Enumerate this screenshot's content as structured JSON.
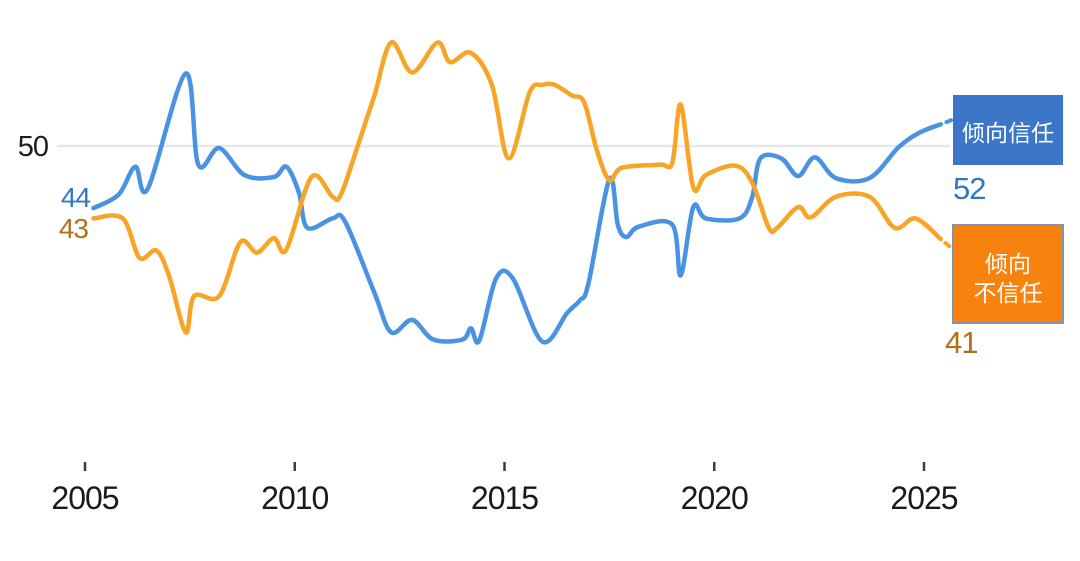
{
  "labels": {
    "y_gridline": "50",
    "trust_start": "44",
    "distrust_start": "43",
    "trust_end": "52",
    "distrust_end": "41"
  },
  "legend": {
    "trust": {
      "label": "倾向信任",
      "bg": "#3b76c9",
      "text_color": "#ffffff"
    },
    "distrust": {
      "line1": "倾向",
      "line2": "不信任",
      "bg": "#f8820e",
      "text_color": "#ffffff"
    }
  },
  "colors": {
    "trust_line": "#4a93e2",
    "distrust_line": "#f7a427",
    "trust_value_text": "#2e77c5",
    "distrust_value_text": "#b0701c",
    "gridline": "#e7e7e7",
    "tick": "#3c3c3c"
  },
  "chart_data": {
    "type": "line",
    "title": "",
    "x_axis": {
      "ticks": [
        2005,
        2010,
        2015,
        2020,
        2025
      ],
      "tick_labels": [
        "2005",
        "2010",
        "2015",
        "2020",
        "2025"
      ],
      "range": [
        2004.3,
        2026.2
      ]
    },
    "y_axis": {
      "gridline_value": 50,
      "gridline_label": "50",
      "approx_range": [
        28,
        63
      ],
      "grid": "single horizontal line at 50"
    },
    "legend_position": "right",
    "series": [
      {
        "name": "倾向信任",
        "color": "#4a93e2",
        "start_value": 44,
        "end_value": 52,
        "points": [
          [
            2005.2,
            44
          ],
          [
            2005.8,
            45.3
          ],
          [
            2006.2,
            48
          ],
          [
            2006.5,
            45.9
          ],
          [
            2007.4,
            57
          ],
          [
            2007.7,
            48.2
          ],
          [
            2008.2,
            49.8
          ],
          [
            2008.8,
            47.2
          ],
          [
            2009.5,
            47
          ],
          [
            2009.8,
            48
          ],
          [
            2010.1,
            45.5
          ],
          [
            2010.3,
            42.1
          ],
          [
            2010.9,
            43
          ],
          [
            2011.2,
            42.7
          ],
          [
            2011.9,
            35.8
          ],
          [
            2012.3,
            32
          ],
          [
            2012.8,
            33.2
          ],
          [
            2013.3,
            31.3
          ],
          [
            2014.0,
            31.3
          ],
          [
            2014.2,
            32.4
          ],
          [
            2014.4,
            31.2
          ],
          [
            2014.8,
            37.2
          ],
          [
            2015.2,
            37.2
          ],
          [
            2015.9,
            31.1
          ],
          [
            2016.5,
            33.9
          ],
          [
            2016.8,
            35.1
          ],
          [
            2017.0,
            36.7
          ],
          [
            2017.5,
            46.8
          ],
          [
            2017.7,
            42.4
          ],
          [
            2017.9,
            41.2
          ],
          [
            2018.2,
            42.2
          ],
          [
            2019.0,
            42.4
          ],
          [
            2019.2,
            37.5
          ],
          [
            2019.5,
            44.1
          ],
          [
            2019.8,
            43
          ],
          [
            2020.6,
            43
          ],
          [
            2020.9,
            45
          ],
          [
            2021.1,
            48.8
          ],
          [
            2021.6,
            48.8
          ],
          [
            2022.0,
            47.1
          ],
          [
            2022.4,
            48.9
          ],
          [
            2022.9,
            46.9
          ],
          [
            2023.7,
            46.9
          ],
          [
            2024.4,
            49.9
          ],
          [
            2024.9,
            51.3
          ],
          [
            2025.4,
            52.1
          ]
        ]
      },
      {
        "name": "倾向不信任",
        "color": "#f7a427",
        "start_value": 43,
        "end_value": 41,
        "points": [
          [
            2005.2,
            43
          ],
          [
            2005.9,
            43
          ],
          [
            2006.3,
            39.2
          ],
          [
            2006.7,
            39.9
          ],
          [
            2007.0,
            37.5
          ],
          [
            2007.4,
            32
          ],
          [
            2007.6,
            35.5
          ],
          [
            2008.2,
            35.5
          ],
          [
            2008.7,
            40.7
          ],
          [
            2009.1,
            39.7
          ],
          [
            2009.5,
            41.1
          ],
          [
            2009.8,
            40
          ],
          [
            2010.4,
            47
          ],
          [
            2010.9,
            45.1
          ],
          [
            2011.1,
            45.3
          ],
          [
            2011.5,
            50
          ],
          [
            2011.9,
            54.9
          ],
          [
            2012.3,
            60
          ],
          [
            2012.8,
            57.1
          ],
          [
            2013.4,
            60
          ],
          [
            2013.7,
            58.1
          ],
          [
            2014.2,
            59
          ],
          [
            2014.7,
            55.9
          ],
          [
            2015.1,
            48.8
          ],
          [
            2015.6,
            55.2
          ],
          [
            2015.9,
            55.9
          ],
          [
            2016.2,
            55.9
          ],
          [
            2016.6,
            54.9
          ],
          [
            2016.9,
            54.2
          ],
          [
            2017.2,
            49.6
          ],
          [
            2017.5,
            46.7
          ],
          [
            2017.8,
            47.9
          ],
          [
            2018.7,
            48.2
          ],
          [
            2019.0,
            48.4
          ],
          [
            2019.2,
            54
          ],
          [
            2019.5,
            46
          ],
          [
            2019.8,
            47.2
          ],
          [
            2020.5,
            48.1
          ],
          [
            2020.9,
            46.5
          ],
          [
            2021.3,
            42.1
          ],
          [
            2021.5,
            42.1
          ],
          [
            2022.0,
            44.1
          ],
          [
            2022.3,
            43.1
          ],
          [
            2022.9,
            45.1
          ],
          [
            2023.7,
            45.1
          ],
          [
            2024.3,
            42.1
          ],
          [
            2024.8,
            43
          ],
          [
            2025.4,
            41
          ]
        ]
      }
    ]
  }
}
